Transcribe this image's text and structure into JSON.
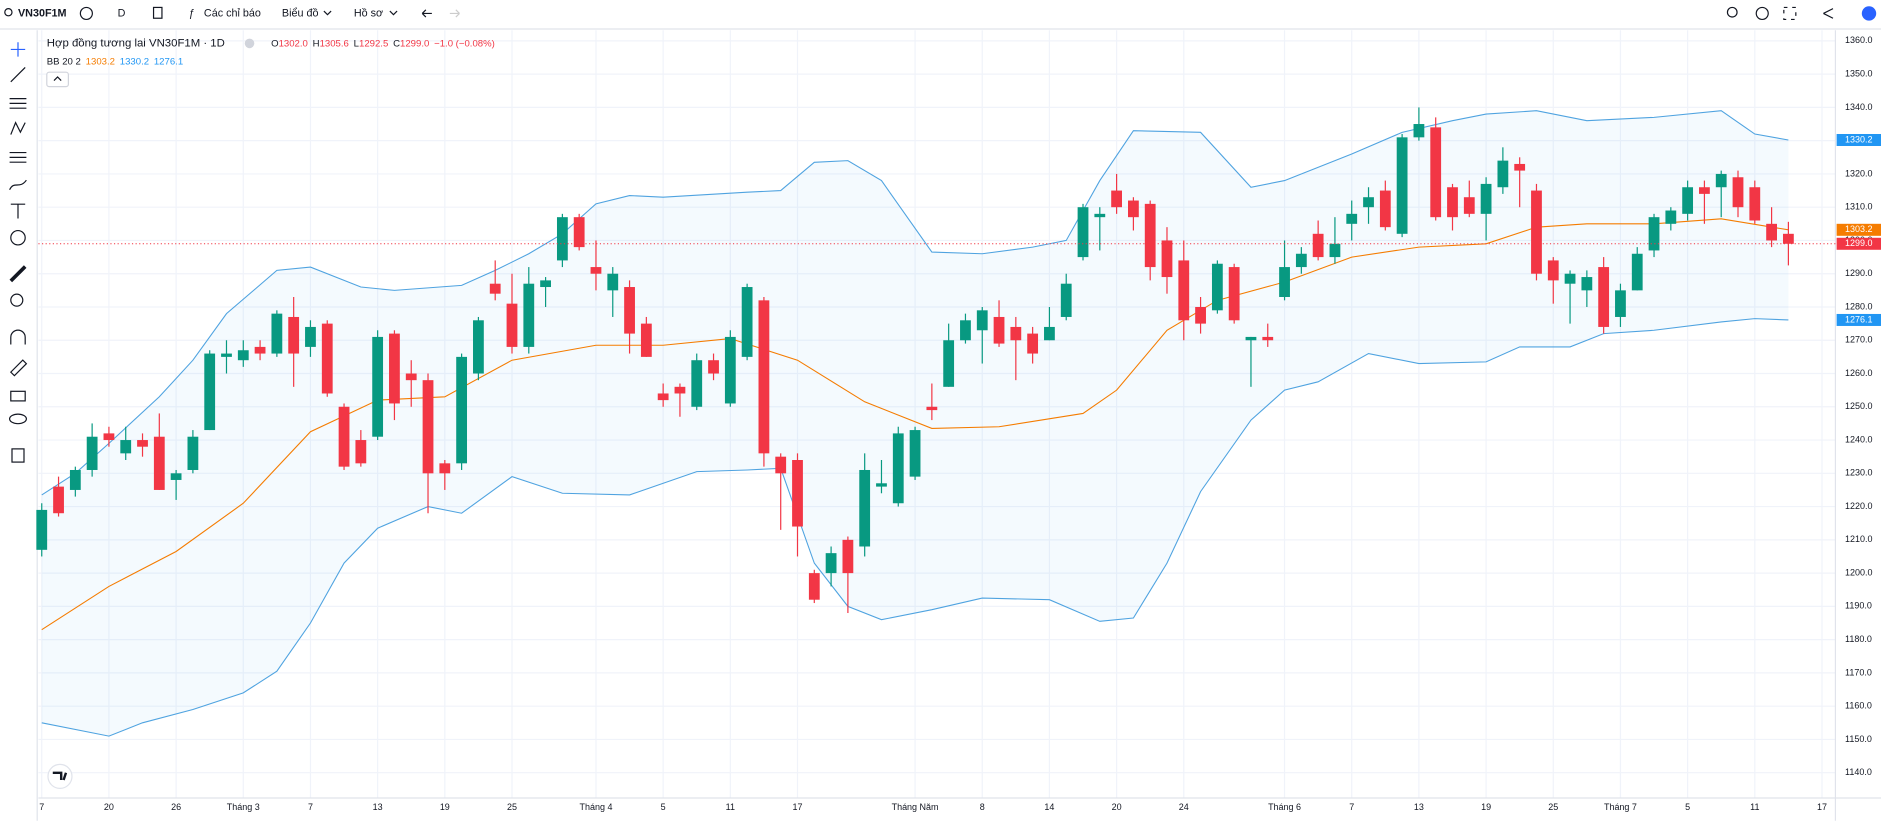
{
  "toolbar": {
    "symbol": "VN30F1M",
    "interval": "D",
    "indicators": "Các chỉ báo",
    "chart": "Biểu đồ",
    "profile": "Hồ sơ"
  },
  "header": {
    "title": "Hợp đồng tương lai VN30F1M · 1D",
    "ohlc": [
      {
        "key": "O",
        "value": "1302.0"
      },
      {
        "key": "H",
        "value": "1305.6"
      },
      {
        "key": "L",
        "value": "1292.5"
      },
      {
        "key": "C",
        "value": "1299.0"
      }
    ],
    "change": "−1.0 (−0.08%)",
    "indicator": "BB 20 2"
  },
  "chart_data": {
    "type": "candlestick",
    "categories": [
      "7",
      null,
      null,
      null,
      "20",
      null,
      null,
      null,
      "26",
      null,
      null,
      null,
      "Tháng 3",
      null,
      null,
      null,
      "7",
      null,
      null,
      null,
      "13",
      null,
      null,
      null,
      "19",
      null,
      null,
      null,
      "25",
      null,
      null,
      null,
      null,
      "Tháng 4",
      null,
      null,
      null,
      "5",
      null,
      null,
      null,
      "11",
      null,
      null,
      null,
      "17",
      null,
      null,
      null,
      null,
      null,
      null,
      "Tháng Năm",
      null,
      null,
      null,
      "8",
      null,
      null,
      null,
      "14",
      null,
      null,
      null,
      "20",
      null,
      null,
      null,
      "24",
      null,
      null,
      null,
      null,
      null,
      "Tháng 6",
      null,
      null,
      null,
      "7",
      null,
      null,
      null,
      "13",
      null,
      null,
      null,
      "19",
      null,
      null,
      null,
      "25",
      null,
      null,
      null,
      "Tháng 7",
      null,
      null,
      null,
      "5",
      null,
      null,
      null,
      "11",
      null,
      null,
      null,
      "17"
    ],
    "open": [
      1207,
      1226,
      1225,
      1231,
      1242,
      1236,
      1240,
      1241,
      1228,
      1231,
      1243,
      1265,
      1264,
      1268,
      1266,
      1277,
      1268,
      1275,
      1250,
      1240,
      1241,
      1272,
      1260,
      1258,
      1233,
      1233,
      1260,
      1287,
      1281,
      1268,
      1286,
      1294,
      1307,
      1292,
      1285,
      1286,
      1275,
      1254,
      1256,
      1250,
      1264,
      1251,
      1265,
      1282,
      1235,
      1234,
      1200,
      1200,
      1210,
      1208,
      1226,
      1221,
      1229,
      1250,
      1256,
      1270,
      1273,
      1277,
      1274,
      1272,
      1270,
      1277,
      1295,
      1307,
      1315,
      1312,
      1311,
      1300,
      1294,
      1280,
      1279,
      1292,
      1270,
      1271,
      1283,
      1292,
      1302,
      1295,
      1305,
      1310,
      1315,
      1302,
      1331,
      1334,
      1316,
      1313,
      1308,
      1316,
      1323,
      1315,
      1294,
      1287,
      1285,
      1292,
      1277,
      1285,
      1297,
      1305,
      1308,
      1316,
      1316,
      1319,
      1316,
      1305,
      1302.0,
      null,
      null
    ],
    "close": [
      1219,
      1218,
      1231,
      1241,
      1240,
      1240,
      1238,
      1225,
      1230,
      1241,
      1266,
      1266,
      1267,
      1266,
      1278,
      1266,
      1274,
      1254,
      1232,
      1233,
      1271,
      1251,
      1258,
      1230,
      1230,
      1265,
      1276,
      1284,
      1268,
      1287,
      1288,
      1307,
      1298,
      1290,
      1290,
      1272,
      1265,
      1252,
      1254,
      1264,
      1260,
      1271,
      1286,
      1236,
      1230,
      1214,
      1192,
      1206,
      1200,
      1231,
      1227,
      1242,
      1243,
      1249,
      1270,
      1276,
      1279,
      1269,
      1270,
      1266,
      1274,
      1287,
      1310,
      1308,
      1310,
      1307,
      1292,
      1289,
      1276,
      1275,
      1293,
      1276,
      1271,
      1270,
      1292,
      1296,
      1295,
      1299,
      1308,
      1313,
      1304,
      1331,
      1335,
      1307,
      1307,
      1308,
      1317,
      1324,
      1321,
      1290,
      1288,
      1290,
      1289,
      1274,
      1285,
      1296,
      1307,
      1309,
      1316,
      1314,
      1320,
      1310,
      1306,
      1300,
      1299.0,
      null,
      null
    ],
    "high": [
      1221,
      1229,
      1232,
      1245,
      1244,
      1244,
      1242,
      1248,
      1231,
      1243,
      1267,
      1270,
      1270,
      1270,
      1279,
      1283,
      1276,
      1276,
      1251,
      1243,
      1273,
      1273,
      1264,
      1260,
      1234,
      1266,
      1277,
      1294,
      1290,
      1292,
      1289,
      1308,
      1308,
      1300,
      1292,
      1288,
      1277,
      1257,
      1257,
      1266,
      1266,
      1273,
      1287,
      1283,
      1236,
      1236,
      1201,
      1208,
      1211,
      1236,
      1234,
      1244,
      1244,
      1257,
      1275,
      1278,
      1280,
      1282,
      1277,
      1274,
      1280,
      1290,
      1311,
      1310,
      1320,
      1313,
      1312,
      1304,
      1300,
      1283,
      1294,
      1293,
      1271,
      1275,
      1300,
      1298,
      1306,
      1307,
      1312,
      1316,
      1318,
      1332,
      1340,
      1337,
      1317,
      1318,
      1319,
      1328,
      1325,
      1317,
      1295,
      1291,
      1291,
      1295,
      1287,
      1298,
      1308,
      1310,
      1318,
      1318,
      1321,
      1321,
      1318,
      1310,
      1305.6,
      null,
      null
    ],
    "low": [
      1205,
      1217,
      1223,
      1229,
      1238,
      1234,
      1235,
      1225,
      1222,
      1230,
      1243,
      1260,
      1262,
      1264,
      1265,
      1256,
      1265,
      1253,
      1231,
      1232,
      1240,
      1246,
      1250,
      1218,
      1225,
      1231,
      1258,
      1282,
      1266,
      1266,
      1280,
      1292,
      1297,
      1285,
      1277,
      1266,
      1265,
      1250,
      1247,
      1249,
      1258,
      1250,
      1264,
      1232,
      1213,
      1205,
      1191,
      1196,
      1188,
      1205,
      1224,
      1220,
      1228,
      1246,
      1256,
      1269,
      1263,
      1268,
      1258,
      1263,
      1270,
      1276,
      1294,
      1297,
      1308,
      1303,
      1288,
      1284,
      1270,
      1272,
      1278,
      1275,
      1256,
      1268,
      1282,
      1290,
      1294,
      1293,
      1300,
      1305,
      1303,
      1301,
      1330,
      1306,
      1303,
      1307,
      1300,
      1314,
      1310,
      1288,
      1281,
      1275,
      1280,
      1272,
      1274,
      1285,
      1295,
      1303,
      1306,
      1305,
      1307,
      1307,
      1305,
      1298,
      1292.5,
      null,
      null
    ],
    "up_color": "#089981",
    "down_color": "#f23645",
    "bollinger": {
      "basis": {
        "color": "#f57c00",
        "x": [
          0,
          4,
          8,
          12,
          16,
          20,
          24,
          28,
          33,
          37,
          41,
          45,
          49,
          53,
          57,
          62,
          64,
          67,
          70,
          74,
          78,
          82,
          86,
          89,
          92,
          96,
          100,
          104
        ],
        "values": [
          1183,
          1196,
          1206.5,
          1221,
          1242.5,
          1252,
          1253,
          1264,
          1268.5,
          1268.5,
          1270.5,
          1264,
          1251.5,
          1243.5,
          1244,
          1248,
          1255,
          1273,
          1282,
          1287.5,
          1295,
          1298,
          1299,
          1304,
          1305,
          1305,
          1306.5,
          1303.2
        ]
      },
      "upper": {
        "color": "#4fa3e0",
        "x": [
          0,
          2,
          4,
          7,
          9,
          11,
          14,
          16,
          19,
          21,
          25,
          27,
          29,
          31,
          33,
          35,
          37,
          42,
          44,
          46,
          48,
          50,
          53,
          56,
          59,
          61,
          63,
          65,
          69,
          72,
          74,
          78,
          81,
          84,
          86,
          89,
          92,
          96,
          100,
          102,
          104
        ],
        "values": [
          1223.5,
          1230,
          1239,
          1253,
          1264,
          1278,
          1291,
          1292,
          1286,
          1285,
          1286.5,
          1291,
          1296,
          1302,
          1311,
          1313.5,
          1313,
          1314.5,
          1315,
          1323.5,
          1324,
          1318,
          1296.5,
          1296,
          1298,
          1300,
          1318,
          1333,
          1332.5,
          1316,
          1318,
          1326,
          1332.5,
          1336,
          1338,
          1339,
          1336,
          1337,
          1339,
          1332,
          1330.2
        ]
      },
      "lower": {
        "color": "#4fa3e0",
        "x": [
          0,
          4,
          6,
          9,
          12,
          14,
          16,
          18,
          20,
          23,
          25,
          28,
          31,
          35,
          39,
          42,
          44,
          46,
          48,
          50,
          53,
          56,
          60,
          63,
          65,
          67,
          69,
          72,
          74,
          76,
          79,
          82,
          86,
          88,
          91,
          93,
          96,
          100,
          102,
          104
        ],
        "values": [
          1155,
          1151,
          1155,
          1159,
          1164,
          1170.5,
          1185,
          1203,
          1213.5,
          1220,
          1218,
          1229,
          1224,
          1223.5,
          1230.5,
          1231,
          1231.5,
          1203,
          1190,
          1186,
          1189,
          1192.5,
          1192,
          1185.5,
          1186.5,
          1203,
          1224.5,
          1246,
          1255,
          1257.5,
          1266,
          1263,
          1263.5,
          1268,
          1268,
          1272,
          1273,
          1275.5,
          1276.5,
          1276.1
        ]
      },
      "fill": "rgba(33,150,243,0.05)"
    },
    "price_markers": [
      {
        "value": 1330.2,
        "label": "1330.2",
        "color": "#2196f3"
      },
      {
        "value": 1303.2,
        "label": "1303.2",
        "color": "#f57c00"
      },
      {
        "value": 1299.0,
        "label": "1299.0",
        "color": "#f23645",
        "line": true
      },
      {
        "value": 1276.1,
        "label": "1276.1",
        "color": "#2196f3"
      }
    ],
    "xlim": [
      -0.2,
      106.8
    ],
    "ylim": [
      1132.4,
      1363.2
    ],
    "yticks": [
      {
        "value": 1360,
        "label": "1360.0"
      },
      {
        "value": 1350,
        "label": "1350.0"
      },
      {
        "value": 1340,
        "label": "1340.0"
      },
      {
        "value": 1330,
        "label": "1330.0"
      },
      {
        "value": 1320,
        "label": "1320.0"
      },
      {
        "value": 1310,
        "label": "1310.0"
      },
      {
        "value": 1300,
        "label": "1300.0"
      },
      {
        "value": 1290,
        "label": "1290.0"
      },
      {
        "value": 1280,
        "label": "1280.0"
      },
      {
        "value": 1270,
        "label": "1270.0"
      },
      {
        "value": 1260,
        "label": "1260.0"
      },
      {
        "value": 1250,
        "label": "1250.0"
      },
      {
        "value": 1240,
        "label": "1240.0"
      },
      {
        "value": 1230,
        "label": "1230.0"
      },
      {
        "value": 1220,
        "label": "1220.0"
      },
      {
        "value": 1210,
        "label": "1210.0"
      },
      {
        "value": 1200,
        "label": "1200.0"
      },
      {
        "value": 1190,
        "label": "1190.0"
      },
      {
        "value": 1180,
        "label": "1180.0"
      },
      {
        "value": 1170,
        "label": "1170.0"
      },
      {
        "value": 1160,
        "label": "1160.0"
      },
      {
        "value": 1150,
        "label": "1150.0"
      },
      {
        "value": 1140,
        "label": "1140.0"
      }
    ],
    "grid": true
  }
}
